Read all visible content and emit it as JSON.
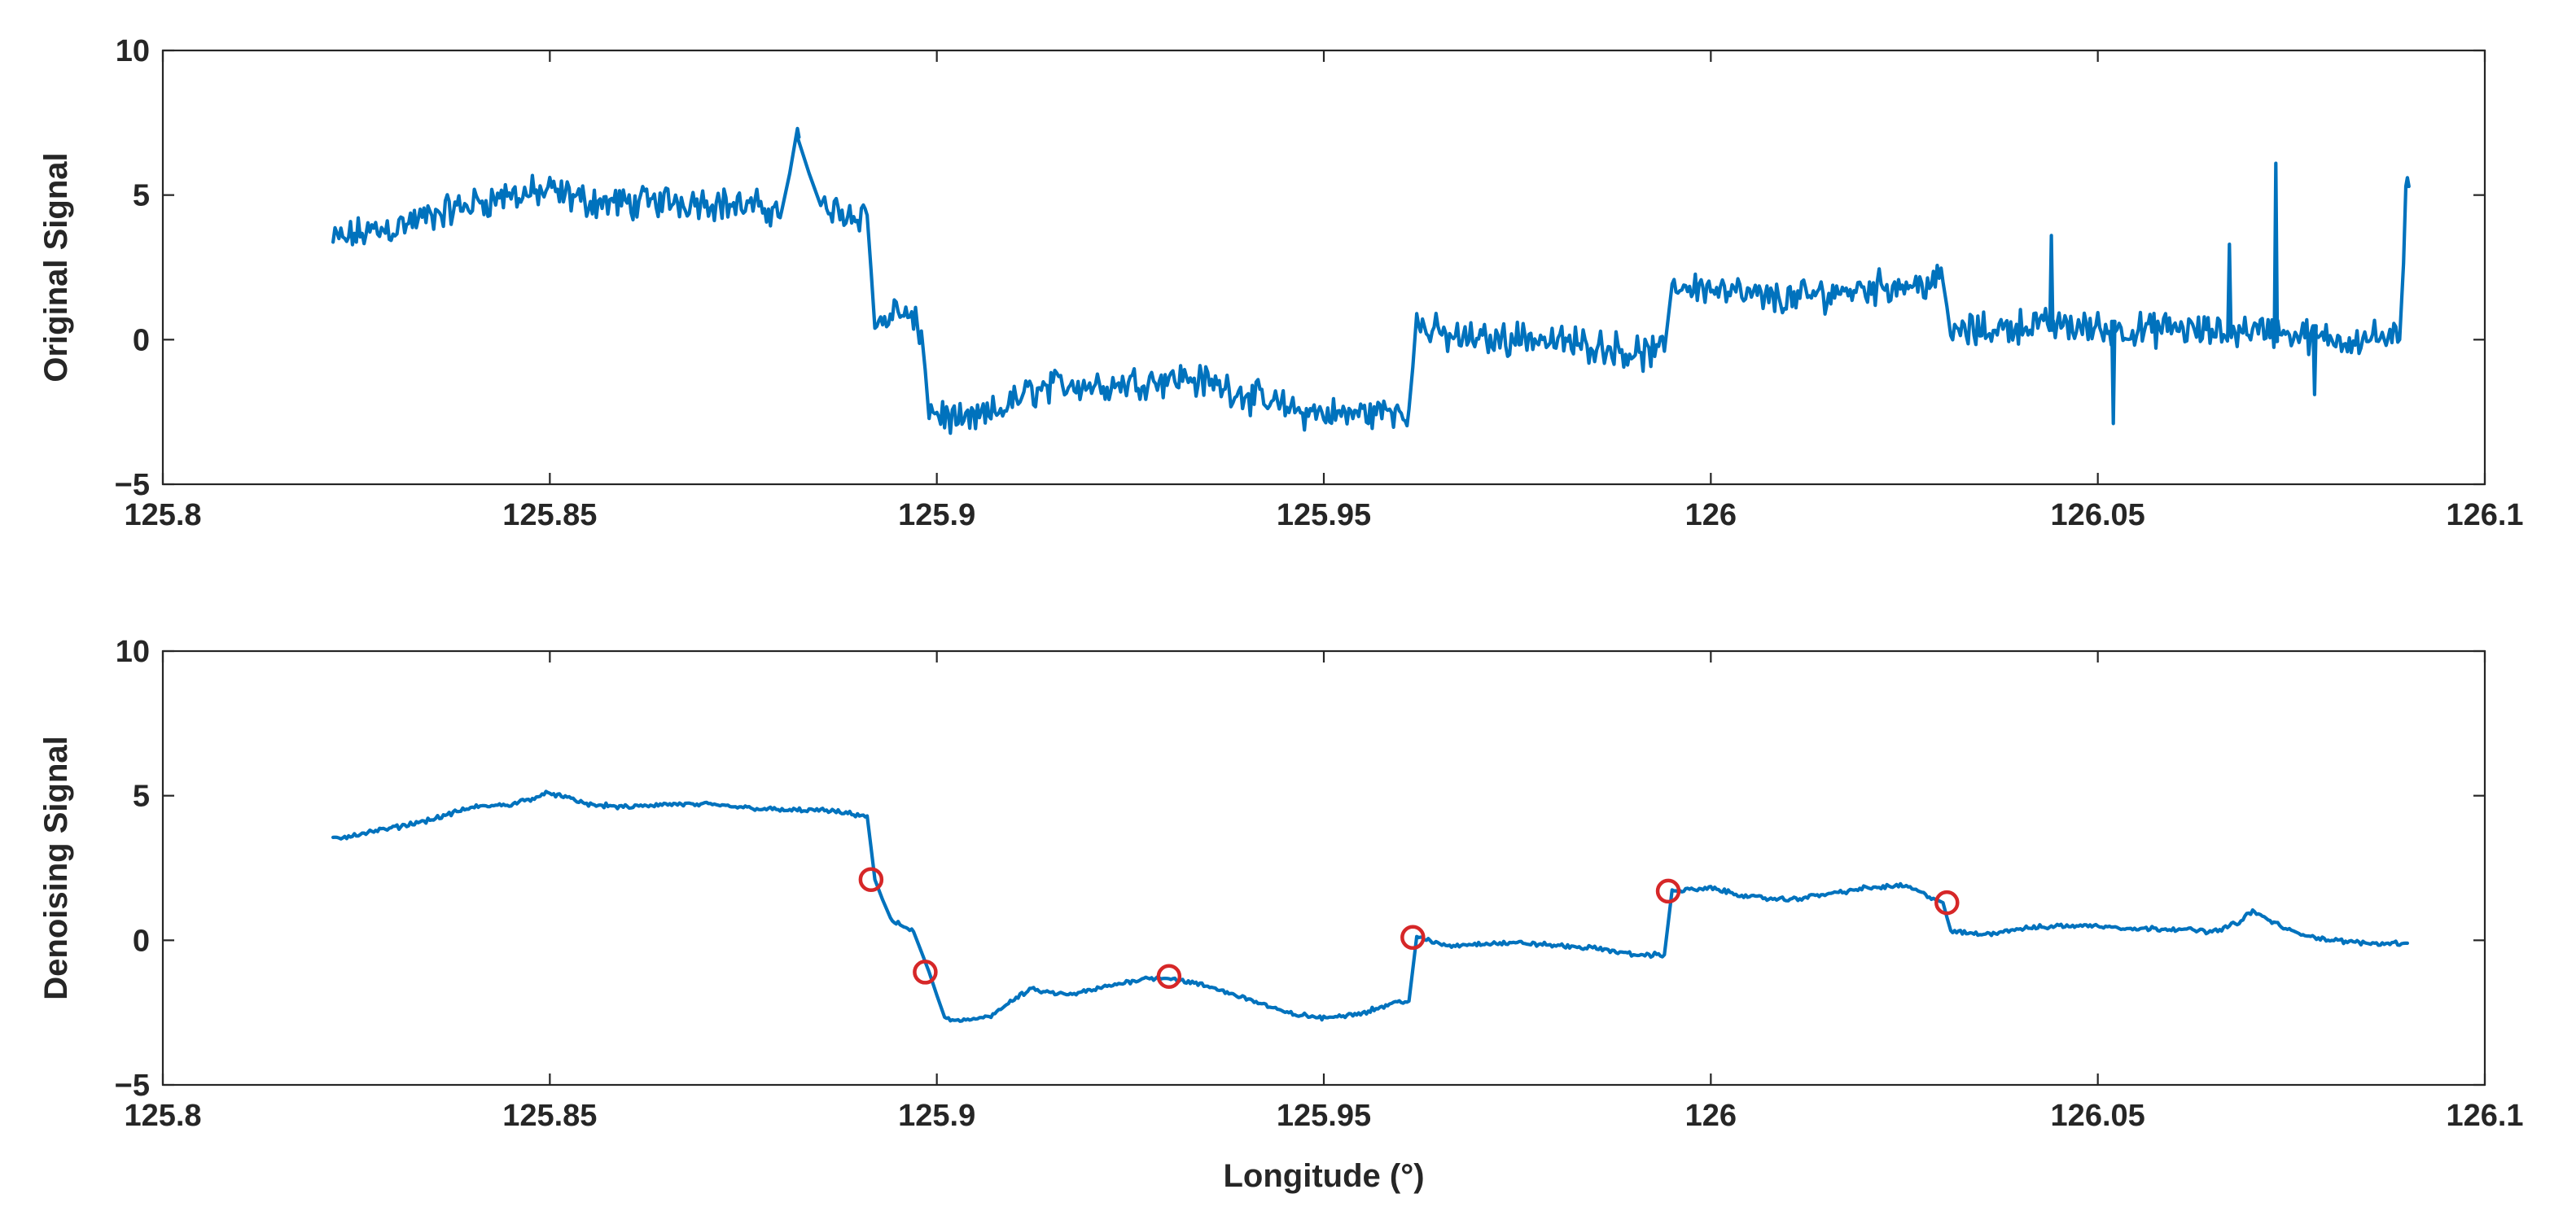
{
  "colors": {
    "series": "#0072BD",
    "marker": "#D62728",
    "axis": "#262626"
  },
  "chart_data": [
    {
      "type": "line",
      "ylabel": "Original Signal",
      "xlabel": "",
      "xlim": [
        125.8,
        126.1
      ],
      "ylim": [
        -5,
        10
      ],
      "xticks": [
        125.8,
        125.85,
        125.9,
        125.95,
        126,
        126.05,
        126.1
      ],
      "xtick_labels": [
        "125.8",
        "125.85",
        "125.9",
        "125.95",
        "126",
        "126.05",
        "126.1"
      ],
      "yticks": [
        -5,
        0,
        5,
        10
      ],
      "ytick_labels": [
        "−5",
        "0",
        "5",
        "10"
      ],
      "grid": false,
      "noise": "high",
      "series": [
        {
          "x": [
            125.822,
            125.826,
            125.83,
            125.835,
            125.84,
            125.845,
            125.85,
            125.855,
            125.86,
            125.865,
            125.87,
            125.875,
            125.88,
            125.882,
            125.885,
            125.888,
            125.891,
            125.892,
            125.895,
            125.898,
            125.899,
            125.903,
            125.907,
            125.912,
            125.917,
            125.922,
            125.927,
            125.932,
            125.937,
            125.942,
            125.947,
            125.952,
            125.957,
            125.961,
            125.962,
            125.966,
            125.971,
            125.976,
            125.981,
            125.986,
            125.991,
            125.994,
            125.995,
            126.0,
            126.005,
            126.01,
            126.015,
            126.02,
            126.025,
            126.03,
            126.031,
            126.035,
            126.04,
            126.045,
            126.05,
            126.055,
            126.06,
            126.065,
            126.07,
            126.075,
            126.08,
            126.085,
            126.089,
            126.09
          ],
          "y": [
            3.4,
            3.7,
            3.9,
            4.3,
            4.7,
            5.0,
            5.1,
            4.8,
            4.7,
            4.8,
            4.8,
            4.6,
            4.5,
            7.0,
            4.5,
            4.4,
            4.3,
            0.5,
            1.0,
            0.3,
            -2.4,
            -2.9,
            -2.6,
            -1.8,
            -1.5,
            -1.6,
            -1.4,
            -1.3,
            -1.6,
            -2.1,
            -2.5,
            -2.6,
            -2.5,
            -2.4,
            0.5,
            0.1,
            0.0,
            0.1,
            -0.1,
            -0.2,
            -0.5,
            -0.4,
            1.9,
            1.8,
            1.5,
            1.4,
            1.6,
            1.8,
            1.9,
            2.0,
            0.3,
            0.3,
            0.5,
            0.5,
            0.4,
            0.3,
            0.4,
            0.2,
            0.4,
            0.2,
            0.0,
            0.1,
            0.0,
            5.3
          ]
        }
      ],
      "spikes": [
        {
          "x": 125.882,
          "y": 7.3
        },
        {
          "x": 126.044,
          "y": 3.6
        },
        {
          "x": 126.052,
          "y": -2.9
        },
        {
          "x": 126.067,
          "y": 3.3
        },
        {
          "x": 126.073,
          "y": 6.1
        },
        {
          "x": 126.078,
          "y": -1.9
        },
        {
          "x": 126.09,
          "y": 5.6
        }
      ]
    },
    {
      "type": "line",
      "ylabel": "Denoising Signal",
      "xlabel": "Longitude (°)",
      "xlim": [
        125.8,
        126.1
      ],
      "ylim": [
        -5,
        10
      ],
      "xticks": [
        125.8,
        125.85,
        125.9,
        125.95,
        126,
        126.05,
        126.1
      ],
      "xtick_labels": [
        "125.8",
        "125.85",
        "125.9",
        "125.95",
        "126",
        "126.05",
        "126.1"
      ],
      "yticks": [
        -5,
        0,
        5,
        10
      ],
      "ytick_labels": [
        "−5",
        "0",
        "5",
        "10"
      ],
      "grid": false,
      "noise": "low",
      "series": [
        {
          "x": [
            125.822,
            125.826,
            125.83,
            125.835,
            125.84,
            125.845,
            125.85,
            125.855,
            125.86,
            125.865,
            125.87,
            125.875,
            125.88,
            125.885,
            125.888,
            125.891,
            125.892,
            125.894,
            125.897,
            125.899,
            125.901,
            125.903,
            125.907,
            125.912,
            125.917,
            125.922,
            125.927,
            125.93,
            125.935,
            125.94,
            125.945,
            125.95,
            125.955,
            125.96,
            125.961,
            125.962,
            125.966,
            125.971,
            125.976,
            125.981,
            125.986,
            125.99,
            125.994,
            125.995,
            126.0,
            126.005,
            126.01,
            126.015,
            126.02,
            126.025,
            126.03,
            126.031,
            126.035,
            126.04,
            126.045,
            126.05,
            126.055,
            126.06,
            126.065,
            126.068,
            126.07,
            126.075,
            126.08,
            126.085,
            126.09
          ],
          "y": [
            3.5,
            3.7,
            3.9,
            4.2,
            4.6,
            4.7,
            5.1,
            4.7,
            4.6,
            4.7,
            4.7,
            4.6,
            4.5,
            4.5,
            4.4,
            4.3,
            2.1,
            0.7,
            0.3,
            -1.1,
            -2.7,
            -2.8,
            -2.6,
            -1.7,
            -1.9,
            -1.6,
            -1.3,
            -1.3,
            -1.6,
            -2.0,
            -2.5,
            -2.7,
            -2.5,
            -2.1,
            -2.1,
            0.1,
            -0.2,
            -0.1,
            -0.1,
            -0.2,
            -0.3,
            -0.5,
            -0.5,
            1.7,
            1.8,
            1.5,
            1.4,
            1.6,
            1.8,
            1.9,
            1.3,
            0.3,
            0.2,
            0.4,
            0.5,
            0.5,
            0.4,
            0.4,
            0.3,
            0.6,
            1.0,
            0.3,
            0.0,
            -0.1,
            -0.1
          ]
        }
      ],
      "spikes": [],
      "markers": {
        "style": "circle",
        "points": [
          {
            "x": 125.8915,
            "y": 2.1
          },
          {
            "x": 125.8985,
            "y": -1.1
          },
          {
            "x": 125.93,
            "y": -1.25
          },
          {
            "x": 125.9615,
            "y": 0.1
          },
          {
            "x": 125.9945,
            "y": 1.7
          },
          {
            "x": 126.0305,
            "y": 1.3
          }
        ]
      }
    }
  ]
}
